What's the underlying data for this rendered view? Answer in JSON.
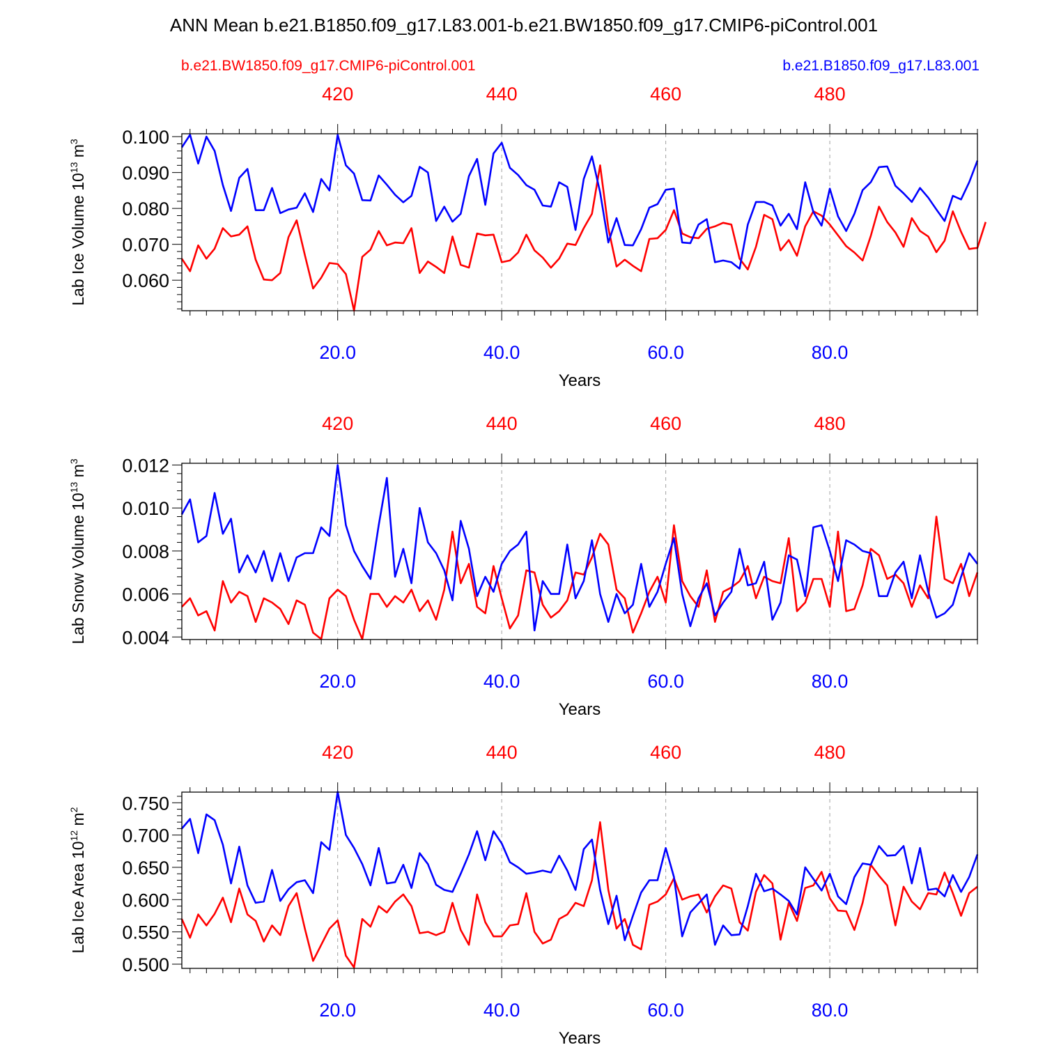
{
  "title": "ANN Mean b.e21.B1850.f09_g17.L83.001-b.e21.BW1850.f09_g17.CMIP6-piControl.001",
  "legend": {
    "left": "b.e21.BW1850.f09_g17.CMIP6-piControl.001",
    "right": "b.e21.B1850.f09_g17.L83.001"
  },
  "colors": {
    "series_a": "#0000ff",
    "series_b": "#ff0000",
    "axis": "#000000",
    "grid": "#a0a0a0"
  },
  "chart_data": [
    {
      "type": "line",
      "ylabel_main": "Lab Ice Volume 10",
      "ylabel_exp": "13",
      "ylabel_unit": " m",
      "ylabel_unit_exp": "3",
      "xlabel": "Years",
      "xlim": [
        1,
        98
      ],
      "ylim": [
        0.0515,
        0.1008
      ],
      "yticks": [
        0.06,
        0.07,
        0.08,
        0.09,
        0.1
      ],
      "ytick_labels": [
        "0.060",
        "0.070",
        "0.080",
        "0.090",
        "0.100"
      ],
      "xticks_bottom": [
        20,
        40,
        60,
        80
      ],
      "xtick_labels_bottom": [
        "20.0",
        "40.0",
        "60.0",
        "80.0"
      ],
      "xtick_labels_top": [
        "420",
        "440",
        "460",
        "480"
      ],
      "series": [
        {
          "name": "b.e21.B1850.f09_g17.L83.001",
          "color": "#0000ff",
          "values": [
            0.097,
            0.1005,
            0.0925,
            0.1,
            0.096,
            0.0865,
            0.0793,
            0.0885,
            0.091,
            0.0795,
            0.0795,
            0.0857,
            0.0787,
            0.0797,
            0.0802,
            0.0842,
            0.079,
            0.0882,
            0.085,
            0.1005,
            0.092,
            0.0897,
            0.0823,
            0.0822,
            0.0892,
            0.0866,
            0.0838,
            0.0817,
            0.0835,
            0.0916,
            0.09,
            0.0765,
            0.0805,
            0.0763,
            0.0785,
            0.089,
            0.0938,
            0.081,
            0.0953,
            0.0983,
            0.0913,
            0.0893,
            0.0865,
            0.0852,
            0.0808,
            0.0805,
            0.0873,
            0.086,
            0.074,
            0.0882,
            0.0945,
            0.0845,
            0.0705,
            0.0773,
            0.0698,
            0.0697,
            0.0742,
            0.0802,
            0.0812,
            0.0852,
            0.0855,
            0.0705,
            0.0703,
            0.0755,
            0.077,
            0.065,
            0.0655,
            0.065,
            0.0632,
            0.0755,
            0.0818,
            0.0818,
            0.0808,
            0.0752,
            0.0785,
            0.0742,
            0.0873,
            0.079,
            0.0752,
            0.0855,
            0.0778,
            0.0737,
            0.0785,
            0.0851,
            0.0873,
            0.0915,
            0.0917,
            0.0863,
            0.0842,
            0.0818,
            0.0857,
            0.083,
            0.0797,
            0.0765,
            0.0835,
            0.0825,
            0.0873,
            0.0933
          ]
        },
        {
          "name": "b.e21.BW1850.f09_g17.CMIP6-piControl.001",
          "color": "#ff0000",
          "values": [
            0.066,
            0.0625,
            0.0697,
            0.066,
            0.0688,
            0.0745,
            0.0722,
            0.0727,
            0.075,
            0.0657,
            0.0602,
            0.06,
            0.062,
            0.072,
            0.0767,
            0.067,
            0.0577,
            0.0607,
            0.0648,
            0.0645,
            0.0617,
            0.0515,
            0.0665,
            0.0685,
            0.0737,
            0.0697,
            0.0705,
            0.0703,
            0.0745,
            0.062,
            0.0652,
            0.0637,
            0.062,
            0.0722,
            0.0643,
            0.0635,
            0.073,
            0.0725,
            0.0727,
            0.065,
            0.0655,
            0.0677,
            0.0727,
            0.0683,
            0.0663,
            0.0635,
            0.066,
            0.0702,
            0.0698,
            0.0745,
            0.0785,
            0.092,
            0.0745,
            0.0638,
            0.0657,
            0.064,
            0.0625,
            0.0715,
            0.0717,
            0.074,
            0.0795,
            0.073,
            0.072,
            0.0717,
            0.0743,
            0.075,
            0.076,
            0.0755,
            0.066,
            0.063,
            0.0693,
            0.0782,
            0.077,
            0.0683,
            0.0712,
            0.0668,
            0.075,
            0.0792,
            0.078,
            0.0755,
            0.0725,
            0.0695,
            0.0677,
            0.0655,
            0.0723,
            0.0805,
            0.0762,
            0.0733,
            0.0693,
            0.0773,
            0.0737,
            0.0722,
            0.0678,
            0.071,
            0.0792,
            0.0735,
            0.0687,
            0.069,
            0.0762
          ]
        }
      ]
    },
    {
      "type": "line",
      "ylabel_main": "Lab Snow Volume 10",
      "ylabel_exp": "13",
      "ylabel_unit": " m",
      "ylabel_unit_exp": "3",
      "xlabel": "Years",
      "xlim": [
        1,
        98
      ],
      "ylim": [
        0.00388,
        0.01208
      ],
      "yticks": [
        0.004,
        0.006,
        0.008,
        0.01,
        0.012
      ],
      "ytick_labels": [
        "0.004",
        "0.006",
        "0.008",
        "0.010",
        "0.012"
      ],
      "xticks_bottom": [
        20,
        40,
        60,
        80
      ],
      "xtick_labels_bottom": [
        "20.0",
        "40.0",
        "60.0",
        "80.0"
      ],
      "xtick_labels_top": [
        "420",
        "440",
        "460",
        "480"
      ],
      "series": [
        {
          "name": "b.e21.B1850.f09_g17.L83.001",
          "color": "#0000ff",
          "values": [
            0.0097,
            0.0104,
            0.0084,
            0.0087,
            0.0107,
            0.0088,
            0.0095,
            0.007,
            0.0078,
            0.007,
            0.008,
            0.0066,
            0.0079,
            0.0066,
            0.0077,
            0.0079,
            0.0079,
            0.0091,
            0.0087,
            0.012,
            0.0092,
            0.008,
            0.0073,
            0.0067,
            0.0092,
            0.0114,
            0.0068,
            0.0081,
            0.0065,
            0.01,
            0.0084,
            0.0079,
            0.0071,
            0.0057,
            0.0094,
            0.0081,
            0.0059,
            0.0068,
            0.0061,
            0.0074,
            0.008,
            0.0083,
            0.0089,
            0.0043,
            0.0066,
            0.006,
            0.006,
            0.0083,
            0.0058,
            0.0066,
            0.0085,
            0.006,
            0.0047,
            0.006,
            0.0051,
            0.0055,
            0.0074,
            0.0054,
            0.0061,
            0.0074,
            0.0086,
            0.006,
            0.0045,
            0.0058,
            0.0065,
            0.005,
            0.0056,
            0.0061,
            0.0081,
            0.0064,
            0.0065,
            0.0075,
            0.0048,
            0.0056,
            0.0078,
            0.0076,
            0.0059,
            0.0091,
            0.0092,
            0.008,
            0.0066,
            0.0085,
            0.0083,
            0.008,
            0.0079,
            0.0059,
            0.0059,
            0.007,
            0.0075,
            0.0058,
            0.0078,
            0.0061,
            0.0049,
            0.0051,
            0.0055,
            0.0068,
            0.0079,
            0.0074
          ]
        },
        {
          "name": "b.e21.BW1850.f09_g17.CMIP6-piControl.001",
          "color": "#ff0000",
          "values": [
            0.0054,
            0.0058,
            0.005,
            0.0052,
            0.0043,
            0.0066,
            0.0056,
            0.0061,
            0.0059,
            0.0047,
            0.0058,
            0.0056,
            0.0053,
            0.0046,
            0.0057,
            0.0055,
            0.0042,
            0.0039,
            0.0058,
            0.0062,
            0.0059,
            0.0048,
            0.0039,
            0.006,
            0.006,
            0.0054,
            0.0059,
            0.0056,
            0.0062,
            0.0052,
            0.0057,
            0.0048,
            0.0062,
            0.0089,
            0.0065,
            0.0074,
            0.0054,
            0.0051,
            0.0073,
            0.0058,
            0.0044,
            0.005,
            0.0071,
            0.007,
            0.0055,
            0.0049,
            0.0052,
            0.0057,
            0.007,
            0.0069,
            0.0077,
            0.0088,
            0.0083,
            0.0062,
            0.0058,
            0.0042,
            0.0051,
            0.0061,
            0.0068,
            0.0056,
            0.0092,
            0.0066,
            0.0059,
            0.0054,
            0.0071,
            0.0047,
            0.0061,
            0.0063,
            0.0066,
            0.0073,
            0.0058,
            0.0068,
            0.0066,
            0.0065,
            0.0086,
            0.0052,
            0.0056,
            0.0067,
            0.0067,
            0.0054,
            0.0089,
            0.0052,
            0.0053,
            0.0064,
            0.0081,
            0.0078,
            0.0067,
            0.0069,
            0.0065,
            0.0054,
            0.0064,
            0.0058,
            0.0096,
            0.0067,
            0.0065,
            0.0074,
            0.0059,
            0.007
          ]
        }
      ]
    },
    {
      "type": "line",
      "ylabel_main": "Lab Ice Area 10",
      "ylabel_exp": "12",
      "ylabel_unit": " m",
      "ylabel_unit_exp": "2",
      "xlabel": "Years",
      "xlim": [
        1,
        98
      ],
      "ylim": [
        0.4935,
        0.7665
      ],
      "yticks": [
        0.5,
        0.55,
        0.6,
        0.65,
        0.7,
        0.75
      ],
      "ytick_labels": [
        "0.500",
        "0.550",
        "0.600",
        "0.650",
        "0.700",
        "0.750"
      ],
      "xticks_bottom": [
        20,
        40,
        60,
        80
      ],
      "xtick_labels_bottom": [
        "20.0",
        "40.0",
        "60.0",
        "80.0"
      ],
      "xtick_labels_top": [
        "420",
        "440",
        "460",
        "480"
      ],
      "series": [
        {
          "name": "b.e21.B1850.f09_g17.L83.001",
          "color": "#0000ff",
          "values": [
            0.71,
            0.725,
            0.672,
            0.732,
            0.723,
            0.685,
            0.625,
            0.682,
            0.622,
            0.595,
            0.597,
            0.646,
            0.598,
            0.616,
            0.627,
            0.63,
            0.61,
            0.689,
            0.677,
            0.767,
            0.7,
            0.68,
            0.655,
            0.622,
            0.68,
            0.625,
            0.627,
            0.654,
            0.618,
            0.672,
            0.655,
            0.623,
            0.615,
            0.612,
            0.64,
            0.67,
            0.706,
            0.661,
            0.706,
            0.687,
            0.658,
            0.65,
            0.64,
            0.642,
            0.645,
            0.642,
            0.668,
            0.645,
            0.615,
            0.678,
            0.693,
            0.615,
            0.562,
            0.606,
            0.537,
            0.575,
            0.611,
            0.63,
            0.63,
            0.68,
            0.635,
            0.543,
            0.58,
            0.594,
            0.608,
            0.53,
            0.56,
            0.545,
            0.546,
            0.59,
            0.64,
            0.613,
            0.617,
            0.608,
            0.598,
            0.577,
            0.65,
            0.632,
            0.614,
            0.64,
            0.605,
            0.593,
            0.635,
            0.656,
            0.654,
            0.683,
            0.668,
            0.669,
            0.683,
            0.625,
            0.68,
            0.615,
            0.617,
            0.605,
            0.638,
            0.612,
            0.635,
            0.67
          ]
        },
        {
          "name": "b.e21.BW1850.f09_g17.CMIP6-piControl.001",
          "color": "#ff0000",
          "values": [
            0.57,
            0.541,
            0.577,
            0.56,
            0.578,
            0.603,
            0.565,
            0.617,
            0.577,
            0.567,
            0.535,
            0.56,
            0.545,
            0.59,
            0.61,
            0.555,
            0.505,
            0.53,
            0.555,
            0.568,
            0.513,
            0.495,
            0.57,
            0.558,
            0.59,
            0.58,
            0.597,
            0.608,
            0.59,
            0.548,
            0.55,
            0.545,
            0.55,
            0.595,
            0.553,
            0.53,
            0.608,
            0.565,
            0.543,
            0.543,
            0.56,
            0.562,
            0.61,
            0.55,
            0.532,
            0.538,
            0.57,
            0.577,
            0.595,
            0.59,
            0.63,
            0.72,
            0.615,
            0.555,
            0.57,
            0.53,
            0.523,
            0.592,
            0.597,
            0.608,
            0.633,
            0.6,
            0.605,
            0.608,
            0.58,
            0.605,
            0.622,
            0.617,
            0.565,
            0.552,
            0.612,
            0.638,
            0.625,
            0.538,
            0.595,
            0.567,
            0.618,
            0.622,
            0.643,
            0.602,
            0.583,
            0.582,
            0.553,
            0.595,
            0.654,
            0.637,
            0.622,
            0.56,
            0.62,
            0.597,
            0.585,
            0.61,
            0.608,
            0.642,
            0.61,
            0.575,
            0.61,
            0.62
          ]
        }
      ]
    }
  ]
}
